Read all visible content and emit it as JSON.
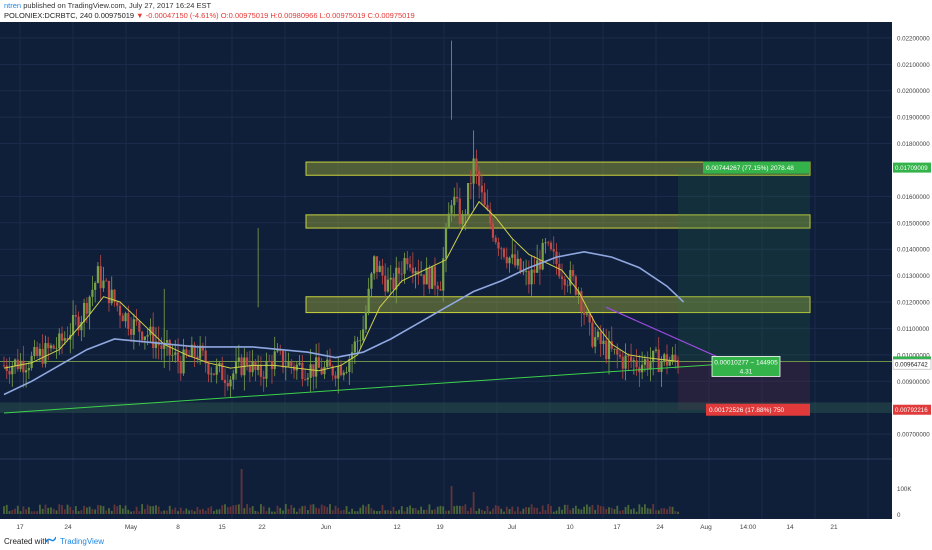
{
  "header": {
    "author": "ntren",
    "published_text": "published on TradingView.com, July 27, 2017 16:24 EST",
    "symbol": "POLONIEX:DCRBTC, 240",
    "last_price": "0.00975019",
    "change": "-0.00047150 (-4.61%)",
    "ohlc": "O:0.00975019 H:0.00980966 L:0.00975019 C:0.00975019"
  },
  "footer": {
    "created_with": "Created with",
    "brand": "TradingView"
  },
  "colors": {
    "background": "#0f1f3a",
    "candle_up": "#7aa24a",
    "candle_down": "#c04a45",
    "ma_fast": "#cfd24a",
    "ma_slow": "#8fa8e0",
    "trend_line": "#3cd24a",
    "resistance_line": "#9a4ae0",
    "zone_fill": "#c8d23a",
    "profit_label": "#33b34a",
    "loss_label": "#e03a3a"
  },
  "chart_data": {
    "type": "candlestick",
    "ylim": [
      0.0067,
      0.0223
    ],
    "yticks": [
      "0.02200000",
      "0.02100000",
      "0.02000000",
      "0.01900000",
      "0.01800000",
      "0.01600000",
      "0.01500000",
      "0.01400000",
      "0.01300000",
      "0.01200000",
      "0.01100000",
      "0.01000000",
      "0.00900000",
      "0.00700000"
    ],
    "xticks": [
      "17",
      "24",
      "May",
      "8",
      "15",
      "22",
      "Jun",
      "12",
      "19",
      "Jul",
      "10",
      "17",
      "24",
      "Aug",
      "14:00",
      "14",
      "21"
    ],
    "price_labels": [
      {
        "value": 0.01709009,
        "text": "0.01709009",
        "color": "#33b34a"
      },
      {
        "value": 0.00975019,
        "text": "0.00975019",
        "color": "#33b34a"
      },
      {
        "value": 0.00964742,
        "text": "0.00964742",
        "color": "#ffffff"
      },
      {
        "value": 0.00792216,
        "text": "0.00792216",
        "color": "#e03a3a"
      }
    ],
    "zones": [
      {
        "low": 0.0168,
        "high": 0.0173
      },
      {
        "low": 0.0148,
        "high": 0.0153
      },
      {
        "low": 0.0116,
        "high": 0.0122
      }
    ],
    "annotations": {
      "target": "0.00744267 (77.15%) 2078.48",
      "stop": "0.00172526 (17.88%) 750",
      "position_line1": "0.00010277 ~ 144905",
      "position_line2": "4.31"
    },
    "volume_tick": "100K",
    "volume_zero": "0",
    "close_path": [
      [
        0,
        0.0096
      ],
      [
        10,
        0.0098
      ],
      [
        20,
        0.0104
      ],
      [
        28,
        0.0115
      ],
      [
        34,
        0.013
      ],
      [
        40,
        0.012
      ],
      [
        46,
        0.0112
      ],
      [
        52,
        0.0108
      ],
      [
        58,
        0.0102
      ],
      [
        64,
        0.0097
      ],
      [
        70,
        0.0101
      ],
      [
        76,
        0.0094
      ],
      [
        82,
        0.0092
      ],
      [
        88,
        0.0098
      ],
      [
        92,
        0.0092
      ],
      [
        98,
        0.0099
      ],
      [
        104,
        0.0096
      ],
      [
        110,
        0.0095
      ],
      [
        118,
        0.0094
      ],
      [
        124,
        0.0097
      ],
      [
        130,
        0.011
      ],
      [
        134,
        0.0135
      ],
      [
        140,
        0.0125
      ],
      [
        146,
        0.0138
      ],
      [
        152,
        0.013
      ],
      [
        158,
        0.0128
      ],
      [
        162,
        0.016
      ],
      [
        166,
        0.015
      ],
      [
        170,
        0.0172
      ],
      [
        174,
        0.0155
      ],
      [
        178,
        0.0145
      ],
      [
        184,
        0.0135
      ],
      [
        190,
        0.0128
      ],
      [
        196,
        0.014
      ],
      [
        202,
        0.0132
      ],
      [
        208,
        0.0125
      ],
      [
        212,
        0.0108
      ],
      [
        218,
        0.0102
      ],
      [
        224,
        0.0098
      ],
      [
        230,
        0.0097
      ],
      [
        238,
        0.0098
      ],
      [
        244,
        0.00975
      ]
    ],
    "ma_fast": [
      [
        0,
        0.0095
      ],
      [
        10,
        0.0097
      ],
      [
        20,
        0.0102
      ],
      [
        30,
        0.0114
      ],
      [
        36,
        0.0122
      ],
      [
        42,
        0.012
      ],
      [
        50,
        0.0112
      ],
      [
        58,
        0.0104
      ],
      [
        66,
        0.01
      ],
      [
        74,
        0.0097
      ],
      [
        82,
        0.0095
      ],
      [
        90,
        0.0096
      ],
      [
        98,
        0.0096
      ],
      [
        106,
        0.0095
      ],
      [
        114,
        0.0094
      ],
      [
        122,
        0.0096
      ],
      [
        128,
        0.01
      ],
      [
        136,
        0.0118
      ],
      [
        144,
        0.0128
      ],
      [
        152,
        0.0132
      ],
      [
        160,
        0.0136
      ],
      [
        166,
        0.0148
      ],
      [
        172,
        0.0158
      ],
      [
        178,
        0.0152
      ],
      [
        184,
        0.0144
      ],
      [
        190,
        0.0138
      ],
      [
        196,
        0.0135
      ],
      [
        202,
        0.0132
      ],
      [
        208,
        0.0124
      ],
      [
        214,
        0.0112
      ],
      [
        220,
        0.0104
      ],
      [
        226,
        0.01
      ],
      [
        232,
        0.0099
      ],
      [
        240,
        0.0098
      ],
      [
        244,
        0.00975
      ]
    ],
    "ma_slow": [
      [
        0,
        0.0085
      ],
      [
        10,
        0.009
      ],
      [
        20,
        0.0096
      ],
      [
        30,
        0.0102
      ],
      [
        40,
        0.0106
      ],
      [
        50,
        0.0105
      ],
      [
        60,
        0.0104
      ],
      [
        70,
        0.0103
      ],
      [
        80,
        0.0103
      ],
      [
        90,
        0.0103
      ],
      [
        100,
        0.0102
      ],
      [
        110,
        0.0101
      ],
      [
        120,
        0.0099
      ],
      [
        130,
        0.0101
      ],
      [
        140,
        0.0106
      ],
      [
        150,
        0.0112
      ],
      [
        160,
        0.0118
      ],
      [
        170,
        0.0124
      ],
      [
        180,
        0.0128
      ],
      [
        190,
        0.0133
      ],
      [
        200,
        0.0137
      ],
      [
        210,
        0.0139
      ],
      [
        220,
        0.0137
      ],
      [
        230,
        0.0133
      ],
      [
        240,
        0.0126
      ],
      [
        246,
        0.012
      ]
    ],
    "candle_count": 245,
    "x_domain": [
      0,
      320
    ]
  }
}
